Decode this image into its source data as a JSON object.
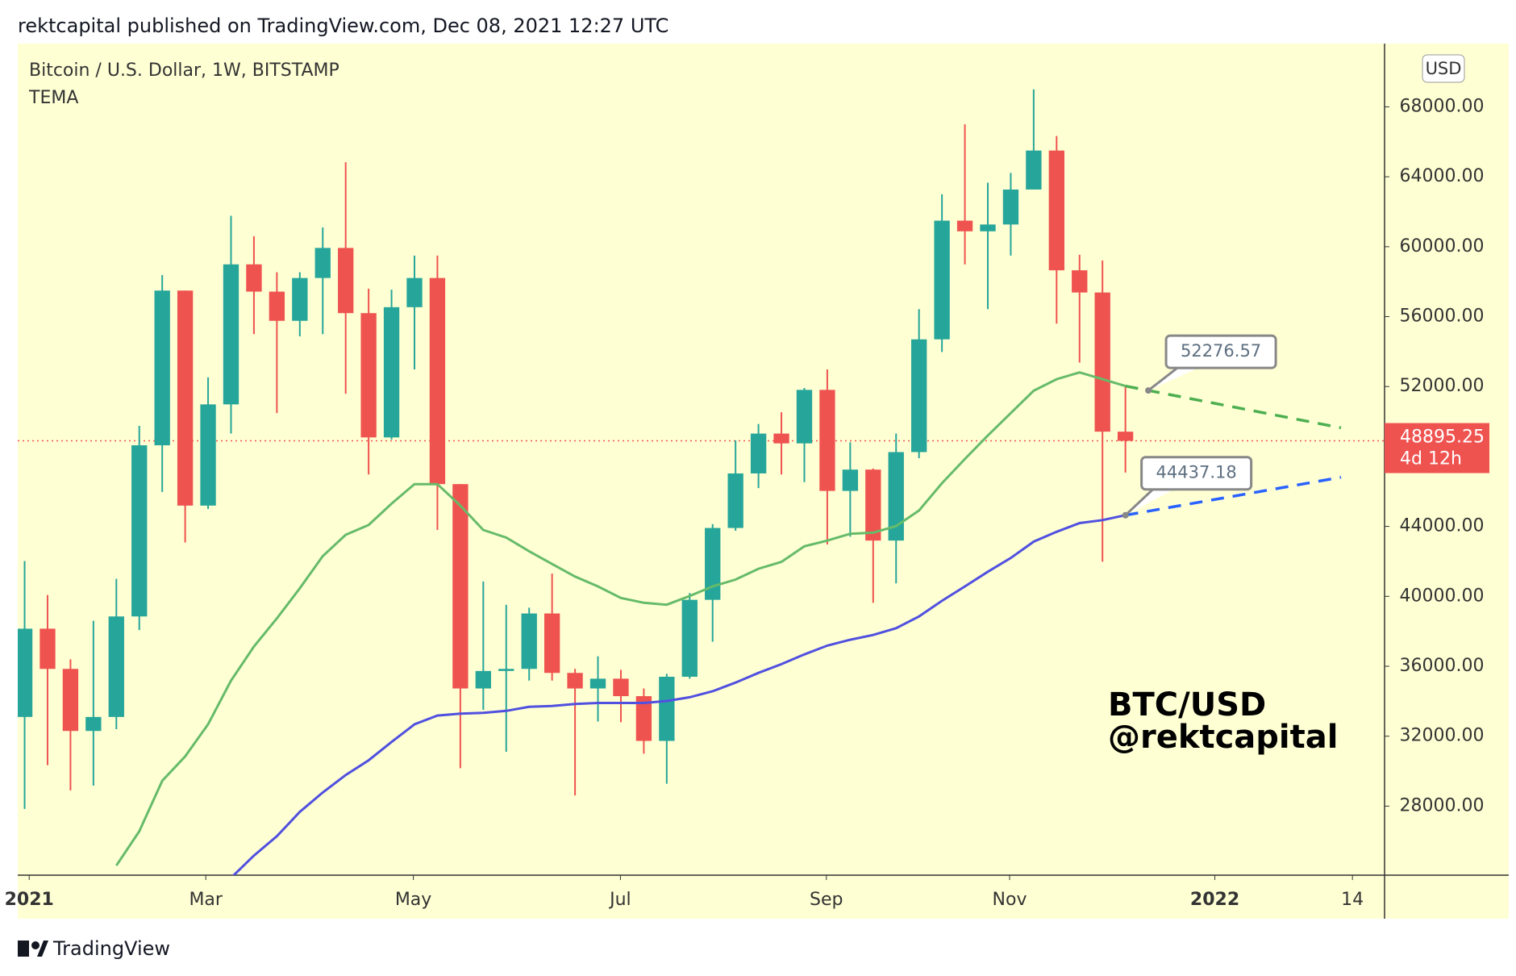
{
  "header": "rektcapital published on TradingView.com, Dec 08, 2021 12:27 UTC",
  "footer": "TradingView",
  "chart_data": {
    "type": "candlestick",
    "title": "Bitcoin / U.S. Dollar, 1W, BITSTAMP",
    "indicator": "TEMA",
    "currency": "USD",
    "watermark": [
      "BTC/USD",
      "@rektcapital"
    ],
    "up_color": "#26a69a",
    "down_color": "#ef5350",
    "open": [
      33100,
      38150,
      35850,
      32300,
      33100,
      38850,
      48640,
      57490,
      45190,
      50980,
      58990,
      57430,
      55760,
      58210,
      59930,
      56200,
      49090,
      56540,
      58210,
      46420,
      34730,
      35730,
      35850,
      39020,
      35620,
      34730,
      35290,
      34290,
      31730,
      35400,
      39800,
      43910,
      47030,
      49310,
      48750,
      51810,
      46030,
      47250,
      43190,
      48250,
      54700,
      61490,
      60880,
      61270,
      63270,
      65500,
      58650,
      57380,
      49420
    ],
    "high": [
      42020,
      40080,
      36400,
      38600,
      41000,
      49750,
      58380,
      57490,
      52530,
      61770,
      60600,
      58540,
      58540,
      61100,
      64830,
      57600,
      57540,
      59490,
      59490,
      46420,
      40850,
      39520,
      39350,
      41300,
      35850,
      36570,
      35800,
      34730,
      35570,
      40190,
      44130,
      48920,
      49860,
      50530,
      51920,
      52980,
      48810,
      47310,
      49310,
      56430,
      63000,
      67000,
      63660,
      64220,
      69000,
      66330,
      59540,
      59210,
      51980
    ],
    "low": [
      27840,
      30340,
      28900,
      29170,
      32400,
      38070,
      45970,
      43080,
      45000,
      49310,
      55000,
      50480,
      54870,
      55000,
      51590,
      46970,
      48970,
      52980,
      43800,
      30170,
      33510,
      31110,
      35180,
      35180,
      28610,
      32840,
      32800,
      31000,
      29280,
      35290,
      37400,
      43750,
      46190,
      46970,
      46530,
      42970,
      43410,
      39630,
      40740,
      47900,
      53980,
      58990,
      56430,
      59490,
      63270,
      55600,
      53370,
      41980,
      47080
    ],
    "close": [
      38150,
      35850,
      32300,
      33100,
      38850,
      48640,
      57490,
      45190,
      50980,
      58990,
      57430,
      55760,
      58210,
      59930,
      56200,
      49090,
      56540,
      58210,
      46420,
      34730,
      35730,
      35850,
      39020,
      35620,
      34730,
      35290,
      34290,
      31730,
      35400,
      39800,
      43910,
      47030,
      49310,
      48750,
      51810,
      46030,
      47250,
      43190,
      48250,
      54700,
      61490,
      60880,
      61270,
      63270,
      65500,
      58650,
      57380,
      49420,
      48895.25
    ],
    "series": [
      {
        "color": "#66bb6a",
        "label_value": 52276.57,
        "projection_end": 49640,
        "values": [
          null,
          null,
          null,
          null,
          24600,
          26560,
          29450,
          30840,
          32680,
          35180,
          37130,
          38740,
          40460,
          42300,
          43520,
          44080,
          45300,
          46420,
          46420,
          45190,
          43800,
          43360,
          42580,
          41850,
          41130,
          40570,
          39910,
          39630,
          39520,
          40020,
          40570,
          40960,
          41580,
          41970,
          42860,
          43190,
          43580,
          43640,
          44020,
          44910,
          46470,
          47860,
          49200,
          50480,
          51760,
          52420,
          52810,
          52420,
          52030
        ]
      },
      {
        "color": "#5050e0",
        "label_value": 44437.18,
        "projection_end": 46810,
        "values": [
          null,
          null,
          null,
          null,
          null,
          null,
          null,
          null,
          null,
          23900,
          25170,
          26280,
          27670,
          28780,
          29780,
          30620,
          31670,
          32680,
          33180,
          33290,
          33340,
          33450,
          33680,
          33730,
          33840,
          33900,
          33900,
          33900,
          34010,
          34230,
          34570,
          35070,
          35620,
          36120,
          36680,
          37180,
          37520,
          37790,
          38180,
          38850,
          39740,
          40570,
          41410,
          42190,
          43130,
          43690,
          44190,
          44360,
          44640
        ]
      }
    ],
    "projection_colors": [
      "#4caf50",
      "#2962ff"
    ],
    "last_price": 48895.25,
    "countdown": "4d 12h",
    "ylim": [
      24050,
      71620
    ],
    "yticks": [
      {
        "value": 28000,
        "label": "28000.00"
      },
      {
        "value": 32000,
        "label": "32000.00"
      },
      {
        "value": 36000,
        "label": "36000.00"
      },
      {
        "value": 40000,
        "label": "40000.00"
      },
      {
        "value": 44000,
        "label": "44000.00"
      },
      {
        "value": 48000,
        "label": "48000.00"
      },
      {
        "value": 52000,
        "label": "52000.00"
      },
      {
        "value": 56000,
        "label": "56000.00"
      },
      {
        "value": 60000,
        "label": "60000.00"
      },
      {
        "value": 64000,
        "label": "64000.00"
      },
      {
        "value": 68000,
        "label": "68000.00"
      }
    ],
    "xlim": [
      -0.3,
      59.3
    ],
    "xticks": [
      {
        "value": 0.2,
        "label": "2021"
      },
      {
        "value": 7.9,
        "label": "Mar"
      },
      {
        "value": 16.95,
        "label": "May"
      },
      {
        "value": 25.98,
        "label": "Jul"
      },
      {
        "value": 34.96,
        "label": "Sep"
      },
      {
        "value": 42.95,
        "label": "Nov"
      },
      {
        "value": 51.9,
        "label": "2022"
      },
      {
        "value": 57.9,
        "label": "14"
      }
    ]
  }
}
